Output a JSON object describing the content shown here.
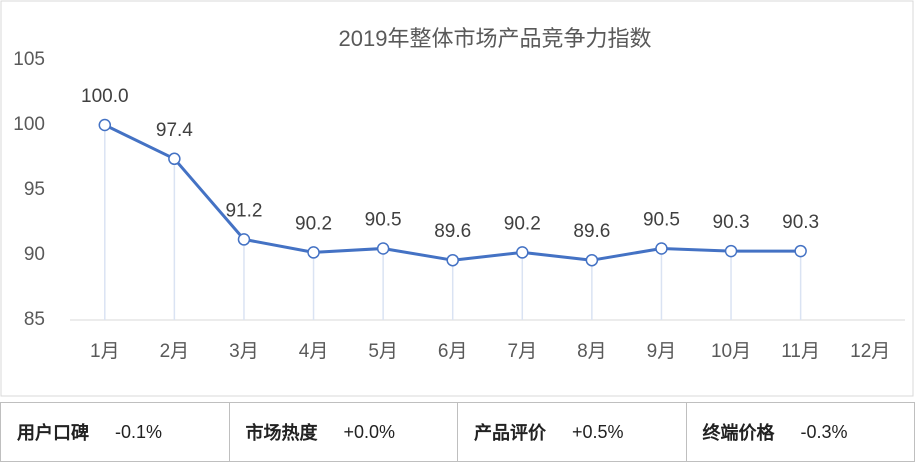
{
  "chart_data": {
    "type": "line",
    "title": "2019年整体市场产品竞争力指数",
    "categories": [
      "1月",
      "2月",
      "3月",
      "4月",
      "5月",
      "6月",
      "7月",
      "8月",
      "9月",
      "10月",
      "11月",
      "12月"
    ],
    "values": [
      100.0,
      97.4,
      91.2,
      90.2,
      90.5,
      89.6,
      90.2,
      89.6,
      90.5,
      90.3,
      90.3,
      null
    ],
    "value_labels": [
      "100.0",
      "97.4",
      "91.2",
      "90.2",
      "90.5",
      "89.6",
      "90.2",
      "89.6",
      "90.5",
      "90.3",
      "90.3",
      null
    ],
    "color": "#4472c4",
    "ylim": [
      85,
      105
    ],
    "yticks": [
      85,
      90,
      95,
      100,
      105
    ],
    "grid": false
  },
  "footer": [
    {
      "label": "用户口碑",
      "value": "-0.1%"
    },
    {
      "label": "市场热度",
      "value": "+0.0%"
    },
    {
      "label": "产品评价",
      "value": "+0.5%"
    },
    {
      "label": "终端价格",
      "value": "-0.3%"
    }
  ]
}
